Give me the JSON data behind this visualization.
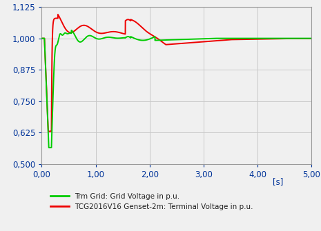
{
  "xlim": [
    0,
    5.0
  ],
  "ylim": [
    0.5,
    1.125
  ],
  "xticks": [
    0.0,
    1.0,
    2.0,
    3.0,
    4.0,
    5.0
  ],
  "yticks": [
    0.5,
    0.625,
    0.75,
    0.875,
    1.0,
    1.125
  ],
  "xlabel_unit": "[s]",
  "grid_color": "#c8c8c8",
  "bg_color": "#f0f0f0",
  "line_green_color": "#00cc00",
  "line_red_color": "#ee0000",
  "legend_green": "Trm Grid: Grid Voltage in p.u.",
  "legend_red": "TCG2016V16 Genset-2m: Terminal Voltage in p.u.",
  "legend_fontsize": 7.5,
  "tick_fontsize": 8.5,
  "tick_color": "#003399"
}
